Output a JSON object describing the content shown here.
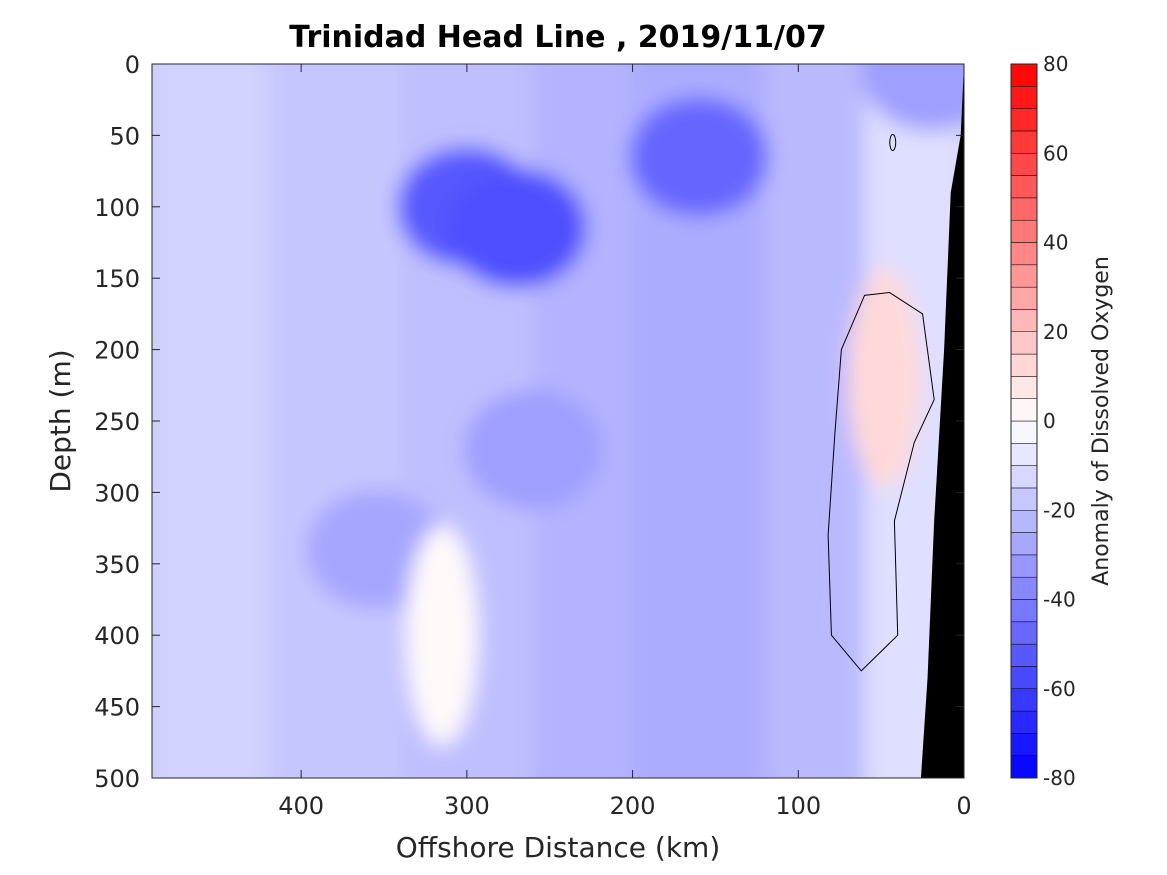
{
  "chart_data": {
    "type": "heatmap",
    "title": "Trinidad Head Line , 2019/11/07",
    "xlabel": "Offshore Distance (km)",
    "ylabel": "Depth (m)",
    "colorbar_label": "Anomaly of Dissolved Oxygen",
    "x_reversed": true,
    "y_reversed": true,
    "xlim": [
      0,
      490
    ],
    "ylim": [
      0,
      500
    ],
    "clim": [
      -80,
      80
    ],
    "x_ticks": [
      400,
      300,
      200,
      100,
      0
    ],
    "y_ticks": [
      0,
      50,
      100,
      150,
      200,
      250,
      300,
      350,
      400,
      450,
      500
    ],
    "colorbar_ticks": [
      80,
      60,
      40,
      20,
      0,
      -20,
      -40,
      -60,
      -80
    ],
    "contour_interval": 5,
    "zero_contour_shown": true,
    "colormap": "blue-white-red",
    "land_color": "#000000",
    "features": [
      {
        "name": "deep low core",
        "x": 300,
        "depth": 100,
        "value": -52
      },
      {
        "name": "deep low core",
        "x": 270,
        "depth": 115,
        "value": -55
      },
      {
        "name": "upper low core",
        "x": 160,
        "depth": 65,
        "value": -48
      },
      {
        "name": "subsurface low",
        "x": 260,
        "depth": 270,
        "value": -30
      },
      {
        "name": "low column",
        "x": 355,
        "depth": 340,
        "value": -28
      },
      {
        "name": "nearshore high",
        "x": 48,
        "depth": 220,
        "value": 12
      },
      {
        "name": "offshore high",
        "x": 315,
        "depth": 400,
        "value": 2
      },
      {
        "name": "surface low",
        "x": 20,
        "depth": 5,
        "value": -30
      }
    ],
    "shelf_profile": [
      {
        "x": 0,
        "depth": 0
      },
      {
        "x": 2,
        "depth": 50
      },
      {
        "x": 8,
        "depth": 90
      },
      {
        "x": 12,
        "depth": 200
      },
      {
        "x": 18,
        "depth": 320
      },
      {
        "x": 22,
        "depth": 430
      },
      {
        "x": 26,
        "depth": 500
      }
    ]
  }
}
